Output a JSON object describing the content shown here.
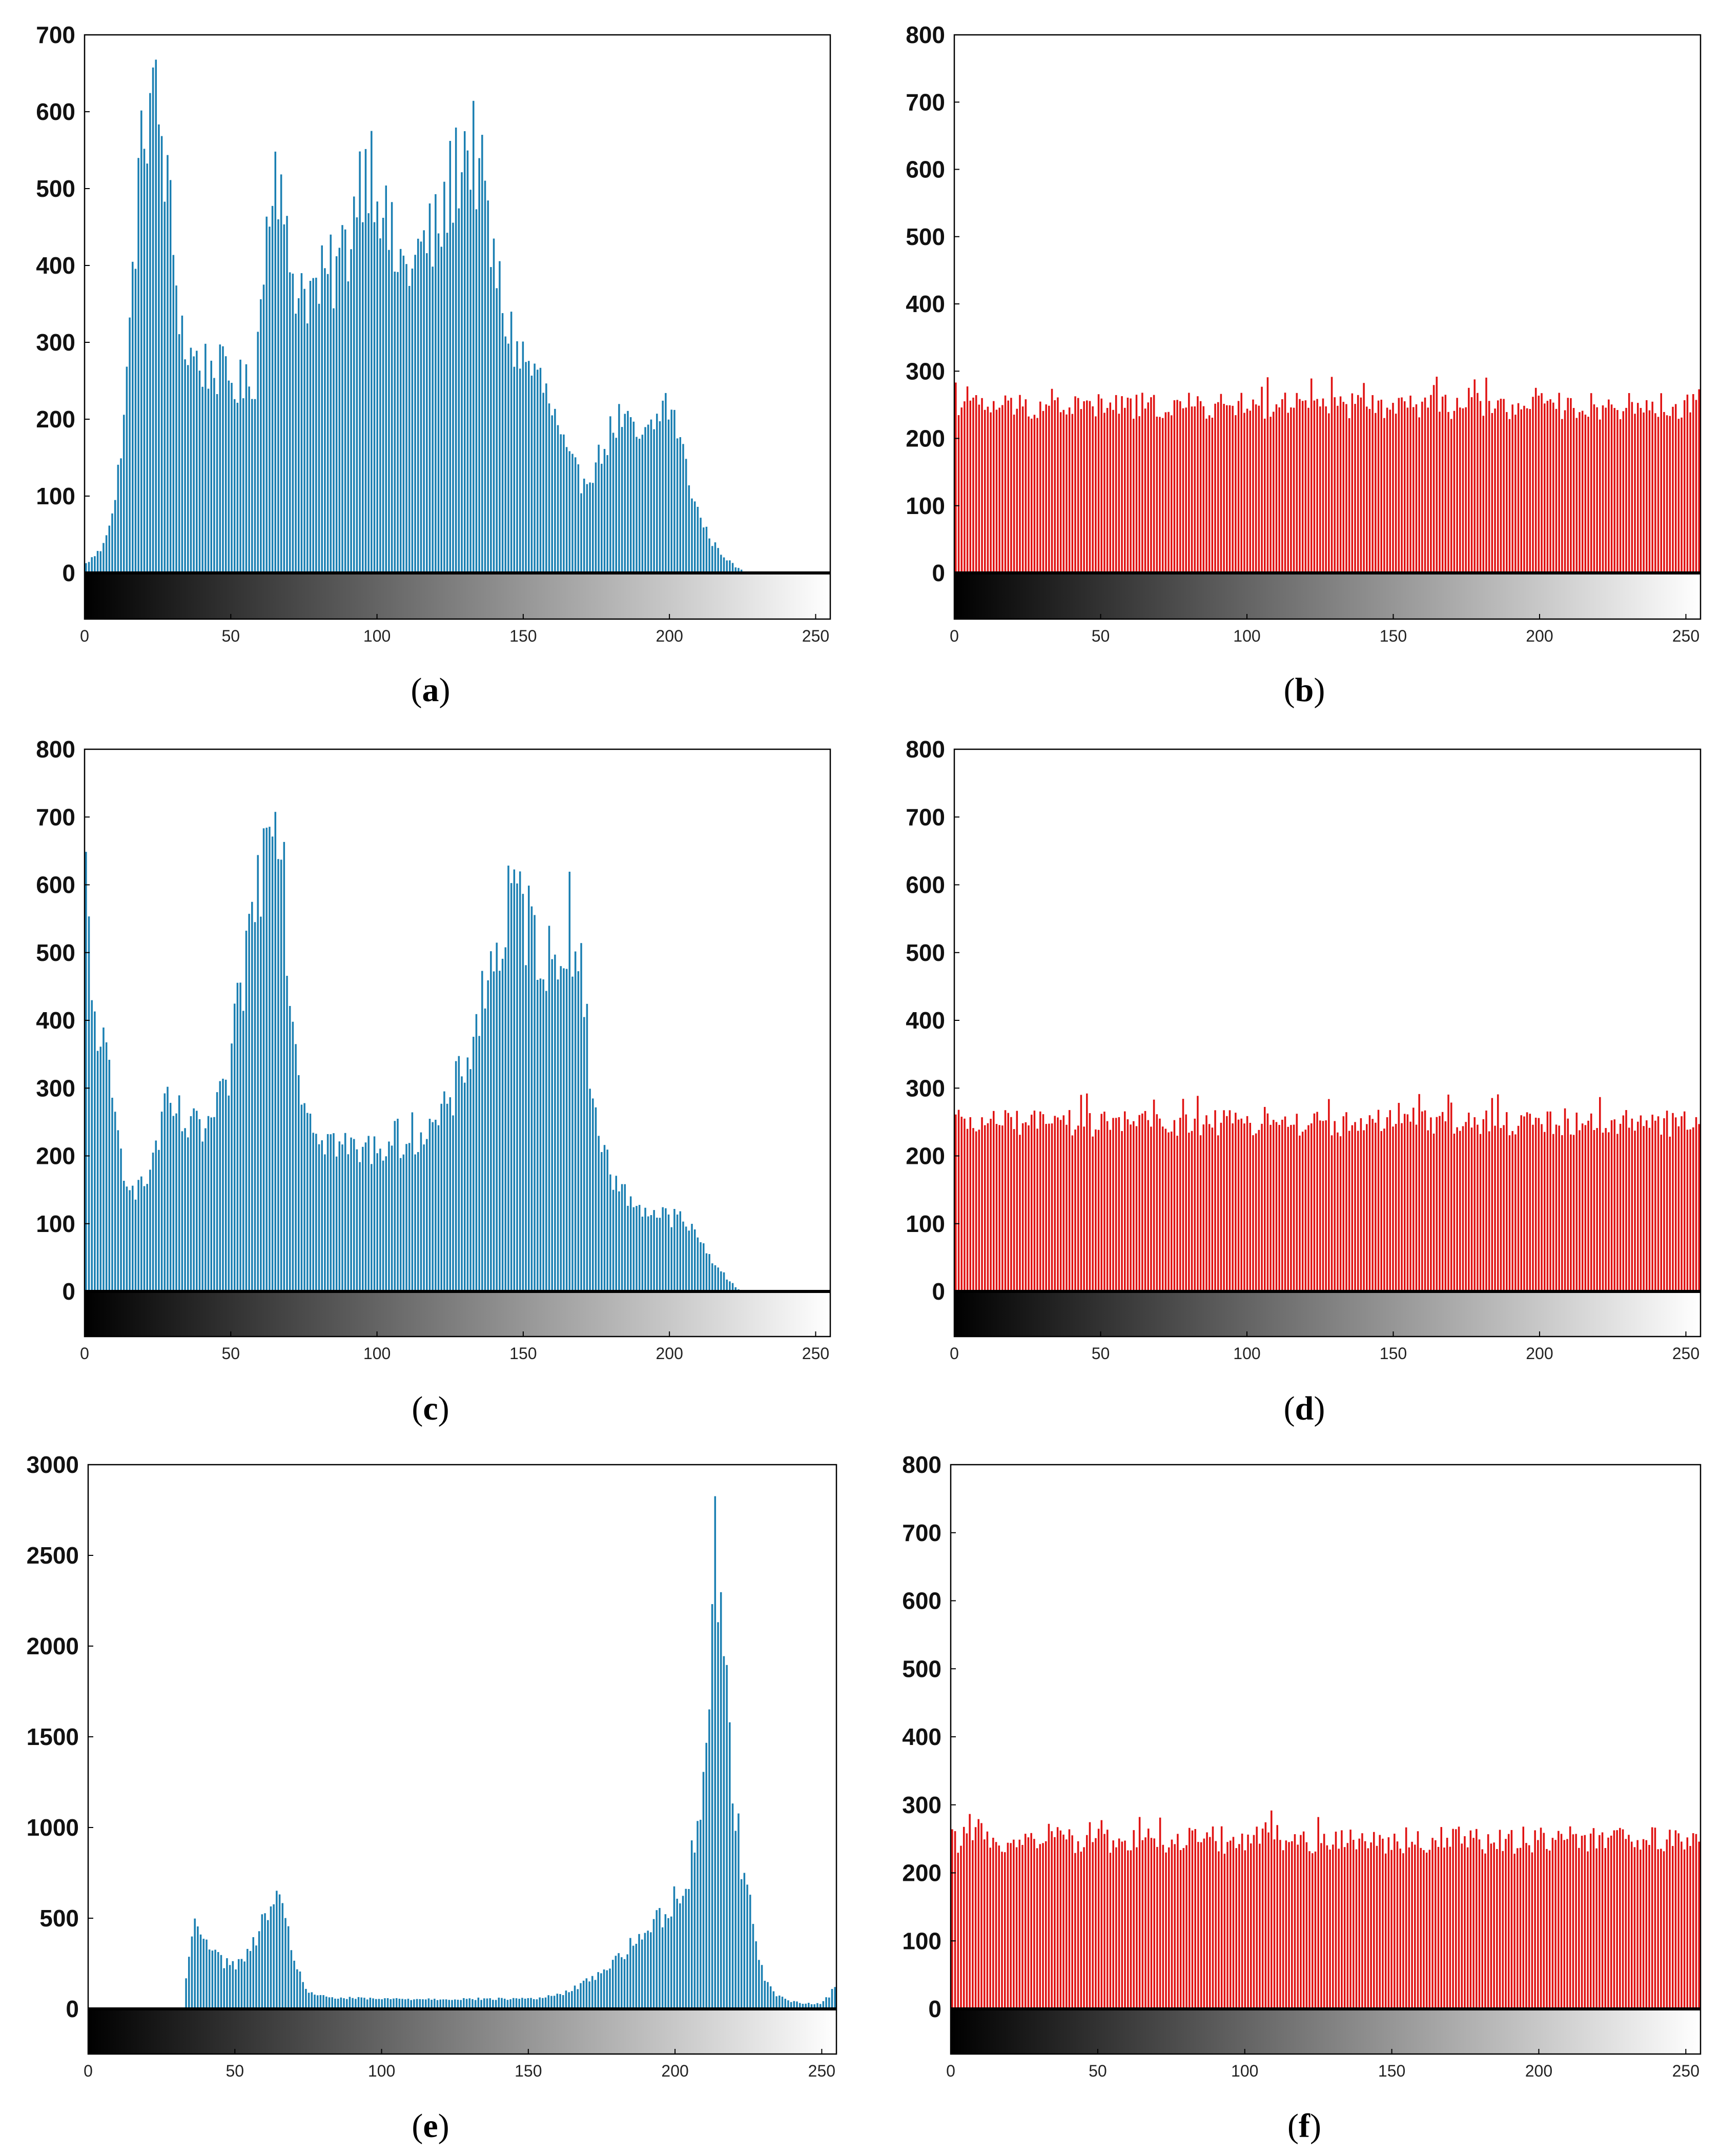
{
  "figure": {
    "colors": {
      "blue": "#1a7fb2",
      "red": "#e01212",
      "frame": "#000000"
    },
    "panels": [
      {
        "id": "a",
        "label": "a",
        "color": "blue",
        "chart_data": {
          "type": "bar",
          "ylim": [
            -60,
            700
          ],
          "yticks": [
            "0",
            "100",
            "200",
            "300",
            "400",
            "500",
            "600",
            "700"
          ],
          "xticks": [
            "0",
            "50",
            "100",
            "150",
            "200",
            "250"
          ],
          "xlim": [
            0,
            255
          ],
          "grayscale_colorbar": true,
          "grid": false,
          "x_range": [
            0,
            255
          ],
          "profile": [
            [
              0,
              12
            ],
            [
              5,
              30
            ],
            [
              10,
              90
            ],
            [
              14,
              250
            ],
            [
              17,
              450
            ],
            [
              20,
              580
            ],
            [
              22,
              630
            ],
            [
              25,
              590
            ],
            [
              28,
              500
            ],
            [
              31,
              380
            ],
            [
              34,
              290
            ],
            [
              40,
              270
            ],
            [
              45,
              265
            ],
            [
              50,
              250
            ],
            [
              55,
              240
            ],
            [
              58,
              260
            ],
            [
              60,
              350
            ],
            [
              62,
              450
            ],
            [
              64,
              550
            ],
            [
              66,
              530
            ],
            [
              68,
              430
            ],
            [
              72,
              380
            ],
            [
              78,
              365
            ],
            [
              85,
              390
            ],
            [
              90,
              430
            ],
            [
              93,
              500
            ],
            [
              96,
              545
            ],
            [
              100,
              520
            ],
            [
              103,
              450
            ],
            [
              107,
              400
            ],
            [
              112,
              400
            ],
            [
              117,
              430
            ],
            [
              121,
              440
            ],
            [
              125,
              500
            ],
            [
              128,
              540
            ],
            [
              131,
              560
            ],
            [
              134,
              540
            ],
            [
              137,
              480
            ],
            [
              140,
              400
            ],
            [
              144,
              330
            ],
            [
              148,
              290
            ],
            [
              152,
              270
            ],
            [
              156,
              250
            ],
            [
              160,
              210
            ],
            [
              165,
              150
            ],
            [
              170,
              120
            ],
            [
              175,
              140
            ],
            [
              179,
              175
            ],
            [
              183,
              200
            ],
            [
              187,
              185
            ],
            [
              191,
              170
            ],
            [
              195,
              190
            ],
            [
              199,
              225
            ],
            [
              203,
              190
            ],
            [
              207,
              120
            ],
            [
              211,
              70
            ],
            [
              215,
              40
            ],
            [
              219,
              22
            ],
            [
              223,
              8
            ],
            [
              226,
              2
            ],
            [
              228,
              0
            ],
            [
              255,
              0
            ]
          ]
        }
      },
      {
        "id": "b",
        "label": "b",
        "color": "red",
        "chart_data": {
          "type": "bar",
          "ylim": [
            -60,
            800
          ],
          "yticks": [
            "0",
            "100",
            "200",
            "300",
            "400",
            "500",
            "600",
            "700",
            "800"
          ],
          "xticks": [
            "0",
            "50",
            "100",
            "150",
            "200",
            "250"
          ],
          "xlim": [
            0,
            255
          ],
          "grayscale_colorbar": true,
          "grid": false,
          "x_range": [
            0,
            255
          ],
          "uniform_mean": 256,
          "uniform_spread": 40
        }
      },
      {
        "id": "c",
        "label": "c",
        "color": "blue",
        "chart_data": {
          "type": "bar",
          "ylim": [
            -60,
            800
          ],
          "yticks": [
            "0",
            "100",
            "200",
            "300",
            "400",
            "500",
            "600",
            "700",
            "800"
          ],
          "xticks": [
            "0",
            "50",
            "100",
            "150",
            "200",
            "250"
          ],
          "xlim": [
            0,
            255
          ],
          "grayscale_colorbar": true,
          "grid": false,
          "x_range": [
            0,
            255
          ],
          "profile": [
            [
              0,
              600
            ],
            [
              2,
              420
            ],
            [
              4,
              400
            ],
            [
              7,
              330
            ],
            [
              10,
              250
            ],
            [
              13,
              185
            ],
            [
              16,
              160
            ],
            [
              19,
              150
            ],
            [
              22,
              180
            ],
            [
              25,
              230
            ],
            [
              28,
              270
            ],
            [
              31,
              260
            ],
            [
              35,
              240
            ],
            [
              39,
              235
            ],
            [
              43,
              250
            ],
            [
              47,
              280
            ],
            [
              50,
              340
            ],
            [
              53,
              440
            ],
            [
              56,
              530
            ],
            [
              59,
              600
            ],
            [
              62,
              680
            ],
            [
              64,
              780
            ],
            [
              66,
              740
            ],
            [
              68,
              620
            ],
            [
              70,
              450
            ],
            [
              73,
              330
            ],
            [
              77,
              260
            ],
            [
              82,
              230
            ],
            [
              88,
              215
            ],
            [
              94,
              205
            ],
            [
              100,
              215
            ],
            [
              107,
              225
            ],
            [
              113,
              235
            ],
            [
              119,
              240
            ],
            [
              124,
              265
            ],
            [
              128,
              310
            ],
            [
              133,
              380
            ],
            [
              137,
              450
            ],
            [
              141,
              500
            ],
            [
              144,
              540
            ],
            [
              147,
              580
            ],
            [
              150,
              560
            ],
            [
              153,
              530
            ],
            [
              156,
              520
            ],
            [
              159,
              480
            ],
            [
              162,
              480
            ],
            [
              164,
              540
            ],
            [
              166,
              560
            ],
            [
              168,
              520
            ],
            [
              171,
              420
            ],
            [
              174,
              300
            ],
            [
              178,
              200
            ],
            [
              183,
              150
            ],
            [
              189,
              130
            ],
            [
              195,
              115
            ],
            [
              201,
              110
            ],
            [
              205,
              105
            ],
            [
              209,
              85
            ],
            [
              213,
              60
            ],
            [
              217,
              35
            ],
            [
              221,
              15
            ],
            [
              224,
              3
            ],
            [
              226,
              0
            ],
            [
              255,
              0
            ]
          ]
        }
      },
      {
        "id": "d",
        "label": "d",
        "color": "red",
        "chart_data": {
          "type": "bar",
          "ylim": [
            -60,
            800
          ],
          "yticks": [
            "0",
            "100",
            "200",
            "300",
            "400",
            "500",
            "600",
            "700",
            "800"
          ],
          "xticks": [
            "0",
            "50",
            "100",
            "150",
            "200",
            "250"
          ],
          "xlim": [
            0,
            255
          ],
          "grayscale_colorbar": true,
          "grid": false,
          "x_range": [
            0,
            255
          ],
          "uniform_mean": 256,
          "uniform_spread": 40
        }
      },
      {
        "id": "e",
        "label": "e",
        "color": "blue",
        "chart_data": {
          "type": "bar",
          "ylim": [
            -240,
            3000
          ],
          "yticks": [
            "0",
            "500",
            "1000",
            "1500",
            "2000",
            "2500",
            "3000"
          ],
          "xticks": [
            "0",
            "50",
            "100",
            "150",
            "200",
            "250"
          ],
          "xlim": [
            0,
            255
          ],
          "grayscale_colorbar": true,
          "grid": false,
          "x_range": [
            0,
            255
          ],
          "profile": [
            [
              0,
              0
            ],
            [
              32,
              0
            ],
            [
              33,
              150
            ],
            [
              35,
              420
            ],
            [
              37,
              460
            ],
            [
              40,
              400
            ],
            [
              43,
              320
            ],
            [
              46,
              260
            ],
            [
              49,
              240
            ],
            [
              52,
              260
            ],
            [
              55,
              320
            ],
            [
              58,
              420
            ],
            [
              61,
              560
            ],
            [
              63,
              590
            ],
            [
              65,
              560
            ],
            [
              68,
              420
            ],
            [
              71,
              230
            ],
            [
              74,
              110
            ],
            [
              78,
              70
            ],
            [
              85,
              60
            ],
            [
              100,
              55
            ],
            [
              120,
              55
            ],
            [
              140,
              55
            ],
            [
              155,
              60
            ],
            [
              163,
              90
            ],
            [
              170,
              150
            ],
            [
              177,
              230
            ],
            [
              184,
              330
            ],
            [
              190,
              420
            ],
            [
              196,
              520
            ],
            [
              201,
              620
            ],
            [
              205,
              750
            ],
            [
              208,
              1000
            ],
            [
              211,
              1500
            ],
            [
              213,
              2100
            ],
            [
              214,
              2550
            ],
            [
              215,
              2450
            ],
            [
              217,
              2000
            ],
            [
              219,
              1500
            ],
            [
              221,
              1100
            ],
            [
              223,
              820
            ],
            [
              225,
              650
            ],
            [
              228,
              380
            ],
            [
              231,
              180
            ],
            [
              234,
              90
            ],
            [
              238,
              50
            ],
            [
              244,
              30
            ],
            [
              250,
              30
            ],
            [
              253,
              70
            ],
            [
              255,
              140
            ]
          ]
        }
      },
      {
        "id": "f",
        "label": "f",
        "color": "red",
        "chart_data": {
          "type": "bar",
          "ylim": [
            -60,
            800
          ],
          "yticks": [
            "0",
            "100",
            "200",
            "300",
            "400",
            "500",
            "600",
            "700",
            "800"
          ],
          "xticks": [
            "0",
            "50",
            "100",
            "150",
            "200",
            "250"
          ],
          "xlim": [
            0,
            255
          ],
          "grayscale_colorbar": true,
          "grid": false,
          "x_range": [
            0,
            255
          ],
          "uniform_mean": 256,
          "uniform_spread": 40
        }
      }
    ]
  }
}
